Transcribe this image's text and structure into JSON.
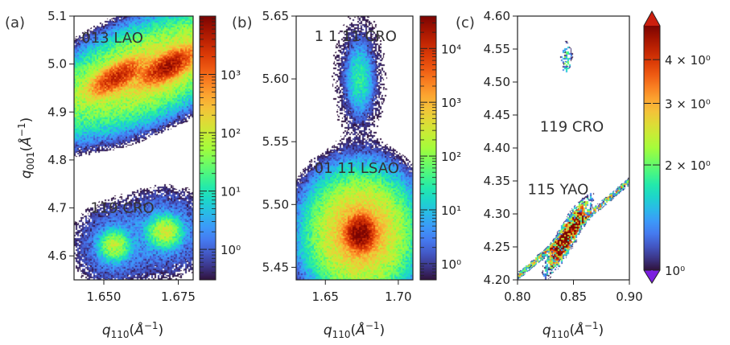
{
  "figure": {
    "colormap": [
      "#30123b",
      "#4145ab",
      "#4675ed",
      "#39a2fc",
      "#1bcfd4",
      "#24eca6",
      "#61fc6c",
      "#a4fc3b",
      "#d1e834",
      "#f3c63a",
      "#fe9b2d",
      "#f36315",
      "#d93806",
      "#b11901",
      "#7a0402"
    ],
    "cmap_start_color": "#7b1fe0",
    "cmap_end_color": "#cc1f0e"
  },
  "chart_data": [
    {
      "type": "heatmap",
      "panel_label": "(a)",
      "xlabel": "q110(Å−1)",
      "ylabel": "q001(Å−1)",
      "xlim": [
        1.64,
        1.68
      ],
      "ylim": [
        4.55,
        5.1
      ],
      "xticks": [
        {
          "value": 1.65,
          "label": "1.650"
        },
        {
          "value": 1.675,
          "label": "1.675"
        }
      ],
      "yticks": [
        {
          "value": 4.6,
          "label": "4.6"
        },
        {
          "value": 4.7,
          "label": "4.7"
        },
        {
          "value": 4.8,
          "label": "4.8"
        },
        {
          "value": 4.9,
          "label": "4.9"
        },
        {
          "value": 5.0,
          "label": "5.0"
        },
        {
          "value": 5.1,
          "label": "5.1"
        }
      ],
      "annotations": [
        {
          "text": "013 LAO",
          "x": 1.6425,
          "y": 5.045
        },
        {
          "text": "119 CRO",
          "x": 1.6455,
          "y": 4.69
        }
      ],
      "streaks": [
        {
          "x0": 1.64,
          "y0": 4.95,
          "x1": 1.68,
          "y1": 5.005,
          "halfwidth": 0.018
        }
      ],
      "peaks": [
        {
          "x": 1.6545,
          "y": 4.973,
          "intensity": 3000,
          "sx": 0.004,
          "sy": 0.012,
          "angle_deg": -12
        },
        {
          "x": 1.6715,
          "y": 4.995,
          "intensity": 5000,
          "sx": 0.004,
          "sy": 0.012,
          "angle_deg": -12
        },
        {
          "x": 1.6535,
          "y": 4.621,
          "intensity": 80,
          "sx": 0.0022,
          "sy": 0.014,
          "angle_deg": 0
        },
        {
          "x": 1.6705,
          "y": 4.65,
          "intensity": 100,
          "sx": 0.0025,
          "sy": 0.014,
          "angle_deg": 0
        }
      ],
      "colorbar": {
        "scale": "log",
        "range": [
          0.3,
          10000
        ],
        "ticks": [
          {
            "value": 1,
            "label": "10⁰"
          },
          {
            "value": 10,
            "label": "10¹"
          },
          {
            "value": 100,
            "label": "10²"
          },
          {
            "value": 1000,
            "label": "10³"
          }
        ]
      }
    },
    {
      "type": "heatmap",
      "panel_label": "(b)",
      "xlabel": "q110(Å−1)",
      "ylabel": "",
      "xlim": [
        1.63,
        1.71
      ],
      "ylim": [
        5.44,
        5.65
      ],
      "xticks": [
        {
          "value": 1.65,
          "label": "1.65"
        },
        {
          "value": 1.7,
          "label": "1.70"
        }
      ],
      "yticks": [
        {
          "value": 5.45,
          "label": "5.45"
        },
        {
          "value": 5.5,
          "label": "5.50"
        },
        {
          "value": 5.55,
          "label": "5.55"
        },
        {
          "value": 5.6,
          "label": "5.60"
        },
        {
          "value": 5.65,
          "label": "5.65"
        }
      ],
      "annotations": [
        {
          "text": "1 1 11 CRO",
          "x": 1.6425,
          "y": 5.63
        },
        {
          "text": "01 11 LSAO",
          "x": 1.6425,
          "y": 5.525
        }
      ],
      "streaks": [
        {
          "x0": 1.63,
          "y0": 5.46,
          "x1": 1.71,
          "y1": 5.49,
          "halfwidth": 0.0015
        }
      ],
      "peaks": [
        {
          "x": 1.6735,
          "y": 5.6,
          "intensity": 30,
          "sx": 0.004,
          "sy": 0.012,
          "angle_deg": 0
        },
        {
          "x": 1.674,
          "y": 5.477,
          "intensity": 40000,
          "sx": 0.0045,
          "sy": 0.006,
          "angle_deg": 0
        }
      ],
      "colorbar": {
        "scale": "log",
        "range": [
          0.5,
          40000
        ],
        "ticks": [
          {
            "value": 1,
            "label": "10⁰"
          },
          {
            "value": 10,
            "label": "10¹"
          },
          {
            "value": 100,
            "label": "10²"
          },
          {
            "value": 1000,
            "label": "10³"
          },
          {
            "value": 10000,
            "label": "10⁴"
          }
        ]
      }
    },
    {
      "type": "heatmap",
      "panel_label": "(c)",
      "xlabel": "q110(Å−1)",
      "ylabel": "",
      "xlim": [
        0.8,
        0.9
      ],
      "ylim": [
        4.2,
        4.6
      ],
      "xticks": [
        {
          "value": 0.8,
          "label": "0.80"
        },
        {
          "value": 0.85,
          "label": "0.85"
        },
        {
          "value": 0.9,
          "label": "0.90"
        }
      ],
      "yticks": [
        {
          "value": 4.2,
          "label": "4.20"
        },
        {
          "value": 4.25,
          "label": "4.25"
        },
        {
          "value": 4.3,
          "label": "4.30"
        },
        {
          "value": 4.35,
          "label": "4.35"
        },
        {
          "value": 4.4,
          "label": "4.40"
        },
        {
          "value": 4.45,
          "label": "4.45"
        },
        {
          "value": 4.5,
          "label": "4.50"
        },
        {
          "value": 4.55,
          "label": "4.55"
        },
        {
          "value": 4.6,
          "label": "4.60"
        }
      ],
      "annotations": [
        {
          "text": "119 CRO",
          "x": 0.82,
          "y": 4.425
        },
        {
          "text": "115 YAO",
          "x": 0.809,
          "y": 4.33
        }
      ],
      "streaks": [
        {
          "x0": 0.8,
          "y0": 4.205,
          "x1": 0.9,
          "y1": 4.35,
          "halfwidth": 0.004
        }
      ],
      "peaks": [
        {
          "x": 0.844,
          "y": 4.535,
          "intensity": 1.3,
          "sx": 0.004,
          "sy": 0.02,
          "angle_deg": 0
        },
        {
          "x": 0.845,
          "y": 4.268,
          "intensity": 5,
          "sx": 0.013,
          "sy": 0.012,
          "angle_deg": -35
        }
      ],
      "colorbar": {
        "scale": "log",
        "range": [
          1,
          5
        ],
        "extend": "both",
        "ticks": [
          {
            "value": 1,
            "label": "10⁰"
          },
          {
            "value": 2,
            "label": "2 × 10⁰"
          },
          {
            "value": 3,
            "label": "3 × 10⁰"
          },
          {
            "value": 4,
            "label": "4 × 10⁰"
          }
        ]
      }
    }
  ]
}
